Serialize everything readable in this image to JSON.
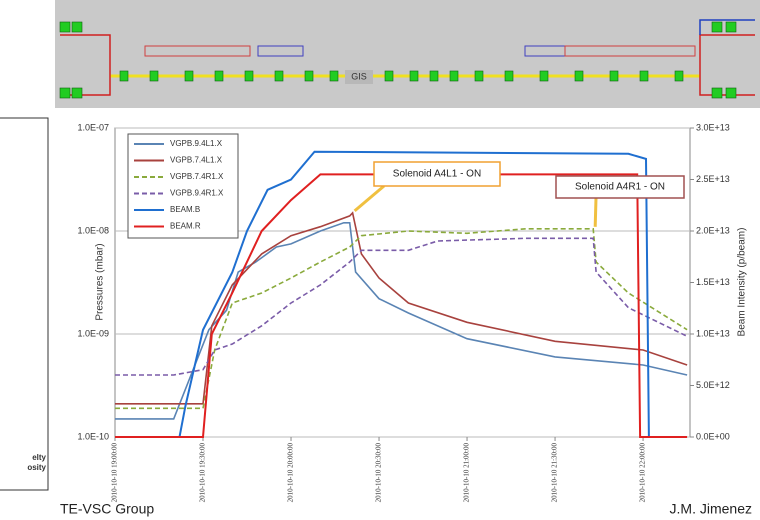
{
  "side_panel": {
    "lines": [
      "elty",
      "osity"
    ]
  },
  "schematic": {
    "label": "GIS"
  },
  "footer": {
    "left": "TE-VSC Group",
    "right": "J.M. Jimenez"
  },
  "chart_data": {
    "type": "line",
    "ylabel": "Pressures (mbar)",
    "y2label": "Beam Intensity (p/beam)",
    "log_y": true,
    "grid": true,
    "legend": "upper left",
    "xlim": [
      "2010-10-10 19:00:00",
      "2010-10-10 22:16:00"
    ],
    "xticks": [
      "2010-10-10 19:00:00",
      "2010-10-10 19:30:00",
      "2010-10-10 20:00:00",
      "2010-10-10 20:30:00",
      "2010-10-10 21:00:00",
      "2010-10-10 21:30:00",
      "2010-10-10 22:00:00"
    ],
    "ylim": [
      1e-10,
      1e-07
    ],
    "yticks": [
      {
        "value": 1e-10,
        "label": "1.0E-10"
      },
      {
        "value": 1e-09,
        "label": "1.0E-09"
      },
      {
        "value": 1e-08,
        "label": "1.0E-08"
      },
      {
        "value": 1e-07,
        "label": "1.0E-07"
      }
    ],
    "y2lim": [
      0,
      30000000000000.0
    ],
    "y2ticks": [
      {
        "value": 0,
        "label": "0.0E+00"
      },
      {
        "value": 5000000000000.0,
        "label": "5.0E+12"
      },
      {
        "value": 10000000000000.0,
        "label": "1.0E+13"
      },
      {
        "value": 15000000000000.0,
        "label": "1.5E+13"
      },
      {
        "value": 20000000000000.0,
        "label": "2.0E+13"
      },
      {
        "value": 25000000000000.0,
        "label": "2.5E+13"
      },
      {
        "value": 30000000000000.0,
        "label": "3.0E+13"
      }
    ],
    "series": [
      {
        "name": "VGPB.9.4L1.X",
        "color": "#5a84b4",
        "linestyle": "solid",
        "x": [
          "2010-10-10 19:00:00",
          "2010-10-10 19:20:00",
          "2010-10-10 19:32:00",
          "2010-10-10 19:38:00",
          "2010-10-10 19:42:00",
          "2010-10-10 19:48:00",
          "2010-10-10 19:55:00",
          "2010-10-10 20:00:00",
          "2010-10-10 20:10:00",
          "2010-10-10 20:18:00",
          "2010-10-10 20:20:00",
          "2010-10-10 20:22:00",
          "2010-10-10 20:30:00",
          "2010-10-10 20:40:00",
          "2010-10-10 21:00:00",
          "2010-10-10 21:30:00",
          "2010-10-10 22:00:00",
          "2010-10-10 22:15:00"
        ],
        "values": [
          1.5e-10,
          1.5e-10,
          1.1e-09,
          1.7e-09,
          4e-09,
          5e-09,
          7e-09,
          7.5e-09,
          1e-08,
          1.2e-08,
          1.2e-08,
          4e-09,
          2.2e-09,
          1.6e-09,
          9e-10,
          6e-10,
          5e-10,
          4e-10
        ]
      },
      {
        "name": "VGPB.7.4L1.X",
        "color": "#a8423e",
        "linestyle": "solid",
        "x": [
          "2010-10-10 19:00:00",
          "2010-10-10 19:30:00",
          "2010-10-10 19:33:00",
          "2010-10-10 19:40:00",
          "2010-10-10 19:50:00",
          "2010-10-10 20:00:00",
          "2010-10-10 20:10:00",
          "2010-10-10 20:20:00",
          "2010-10-10 20:21:00",
          "2010-10-10 20:24:00",
          "2010-10-10 20:30:00",
          "2010-10-10 20:40:00",
          "2010-10-10 21:00:00",
          "2010-10-10 21:30:00",
          "2010-10-10 22:00:00",
          "2010-10-10 22:15:00"
        ],
        "values": [
          2.1e-10,
          2.1e-10,
          1.2e-09,
          3e-09,
          6e-09,
          9e-09,
          1.1e-08,
          1.4e-08,
          1.5e-08,
          6e-09,
          3.5e-09,
          2e-09,
          1.3e-09,
          8.5e-10,
          7e-10,
          5e-10
        ]
      },
      {
        "name": "VGPB.7.4R1.X",
        "color": "#8aaa3c",
        "linestyle": "dashed",
        "x": [
          "2010-10-10 19:00:00",
          "2010-10-10 19:30:00",
          "2010-10-10 19:34:00",
          "2010-10-10 19:40:00",
          "2010-10-10 19:50:00",
          "2010-10-10 20:00:00",
          "2010-10-10 20:10:00",
          "2010-10-10 20:20:00",
          "2010-10-10 20:24:00",
          "2010-10-10 20:40:00",
          "2010-10-10 21:00:00",
          "2010-10-10 21:20:00",
          "2010-10-10 21:43:00",
          "2010-10-10 21:44:00",
          "2010-10-10 21:55:00",
          "2010-10-10 22:15:00"
        ],
        "values": [
          1.9e-10,
          1.9e-10,
          7e-10,
          2e-09,
          2.5e-09,
          3.5e-09,
          5e-09,
          7e-09,
          9e-09,
          1e-08,
          9.5e-09,
          1.05e-08,
          1.05e-08,
          5e-09,
          2.5e-09,
          1.1e-09
        ]
      },
      {
        "name": "VGPB.9.4R1.X",
        "color": "#7a5ca8",
        "linestyle": "dashed",
        "x": [
          "2010-10-10 19:00:00",
          "2010-10-10 19:20:00",
          "2010-10-10 19:30:00",
          "2010-10-10 19:34:00",
          "2010-10-10 19:40:00",
          "2010-10-10 19:50:00",
          "2010-10-10 20:00:00",
          "2010-10-10 20:10:00",
          "2010-10-10 20:20:00",
          "2010-10-10 20:24:00",
          "2010-10-10 20:40:00",
          "2010-10-10 20:50:00",
          "2010-10-10 21:20:00",
          "2010-10-10 21:43:00",
          "2010-10-10 21:44:00",
          "2010-10-10 21:55:00",
          "2010-10-10 22:15:00"
        ],
        "values": [
          4e-10,
          4e-10,
          4.5e-10,
          7e-10,
          8e-10,
          1.2e-09,
          2e-09,
          3e-09,
          5e-09,
          6.5e-09,
          6.5e-09,
          8e-09,
          8.5e-09,
          8.5e-09,
          4e-09,
          1.8e-09,
          9.5e-10
        ]
      },
      {
        "name": "BEAM.B",
        "color": "#1f6fd0",
        "linestyle": "solid",
        "axis": "y2",
        "x": [
          "2010-10-10 19:00:00",
          "2010-10-10 19:22:00",
          "2010-10-10 19:24:00",
          "2010-10-10 19:30:00",
          "2010-10-10 19:40:00",
          "2010-10-10 19:45:00",
          "2010-10-10 19:52:00",
          "2010-10-10 20:00:00",
          "2010-10-10 20:08:00",
          "2010-10-10 21:55:00",
          "2010-10-10 22:01:00",
          "2010-10-10 22:02:00"
        ],
        "values": [
          0,
          0,
          3000000000000.0,
          10400000000000.0,
          16000000000000.0,
          20000000000000.0,
          24000000000000.0,
          25000000000000.0,
          27700000000000.0,
          27500000000000.0,
          27000000000000.0,
          0
        ]
      },
      {
        "name": "BEAM.R",
        "color": "#e02020",
        "linestyle": "solid",
        "axis": "y2",
        "x": [
          "2010-10-10 19:00:00",
          "2010-10-10 19:30:00",
          "2010-10-10 19:33:00",
          "2010-10-10 19:40:00",
          "2010-10-10 19:50:00",
          "2010-10-10 20:00:00",
          "2010-10-10 20:10:00",
          "2010-10-10 21:58:00",
          "2010-10-10 21:59:00",
          "2010-10-10 22:15:00"
        ],
        "values": [
          0,
          0,
          10000000000000.0,
          14000000000000.0,
          20000000000000.0,
          23000000000000.0,
          25500000000000.0,
          25500000000000.0,
          0,
          0
        ]
      }
    ],
    "annotations": [
      {
        "text": "Solenoid A4L1 - ON",
        "x": "2010-10-10 20:21:00",
        "y": 1.5e-08
      },
      {
        "text": "Solenoid A4R1 - ON",
        "x": "2010-10-10 21:43:00",
        "y": 1.05e-08
      }
    ]
  }
}
